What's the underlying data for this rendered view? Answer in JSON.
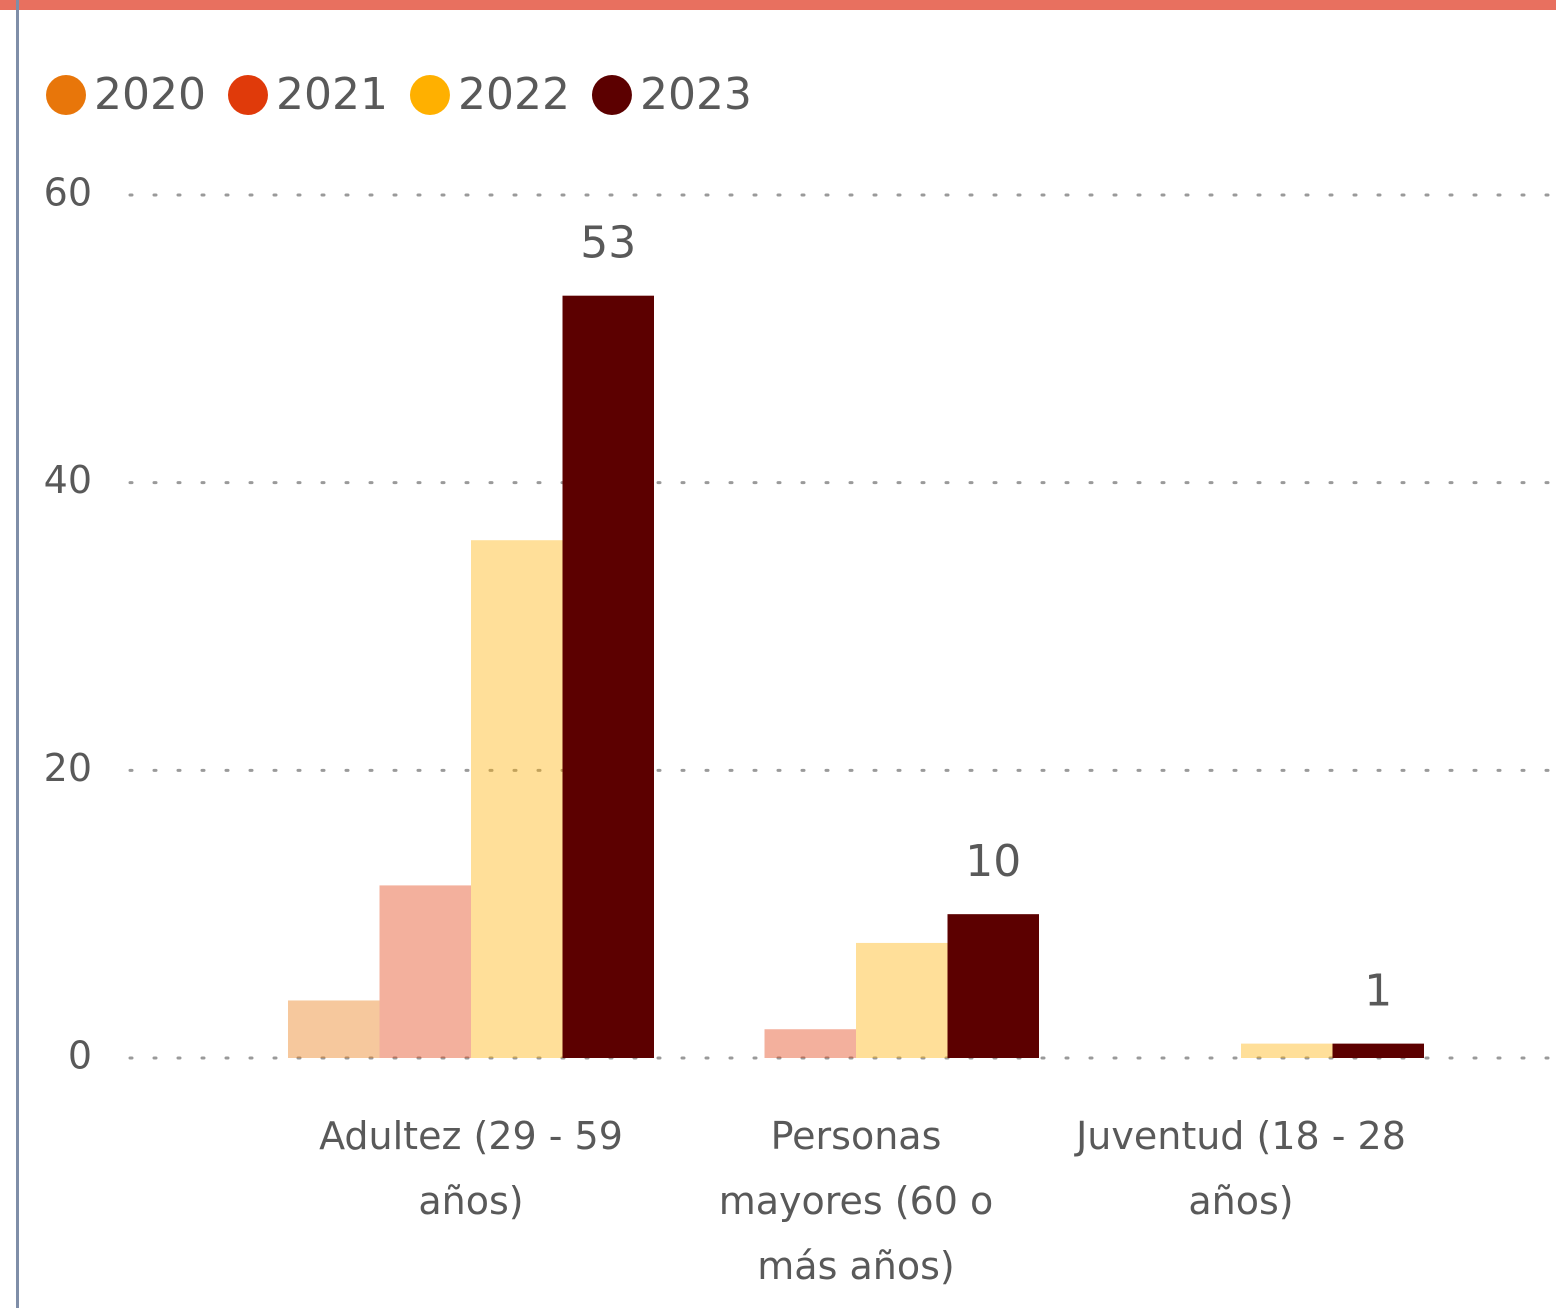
{
  "chart_data": {
    "type": "bar",
    "categories": [
      "Adultez (29 - 59 años)",
      "Personas mayores (60 o más años)",
      "Juventud (18 - 28 años)"
    ],
    "series": [
      {
        "name": "2020",
        "color": "#E8760A",
        "values": [
          4,
          null,
          null
        ]
      },
      {
        "name": "2021",
        "color": "#E03A0A",
        "values": [
          12,
          2,
          null
        ]
      },
      {
        "name": "2022",
        "color": "#FFB000",
        "values": [
          36,
          8,
          1
        ]
      },
      {
        "name": "2023",
        "color": "#5C0000",
        "values": [
          53,
          10,
          1
        ],
        "show_labels": true
      }
    ],
    "highlighted_series": "2023",
    "ylim": [
      0,
      60
    ],
    "yticks": [
      0,
      20,
      40,
      60
    ],
    "grid": true,
    "legend": "top-left"
  }
}
